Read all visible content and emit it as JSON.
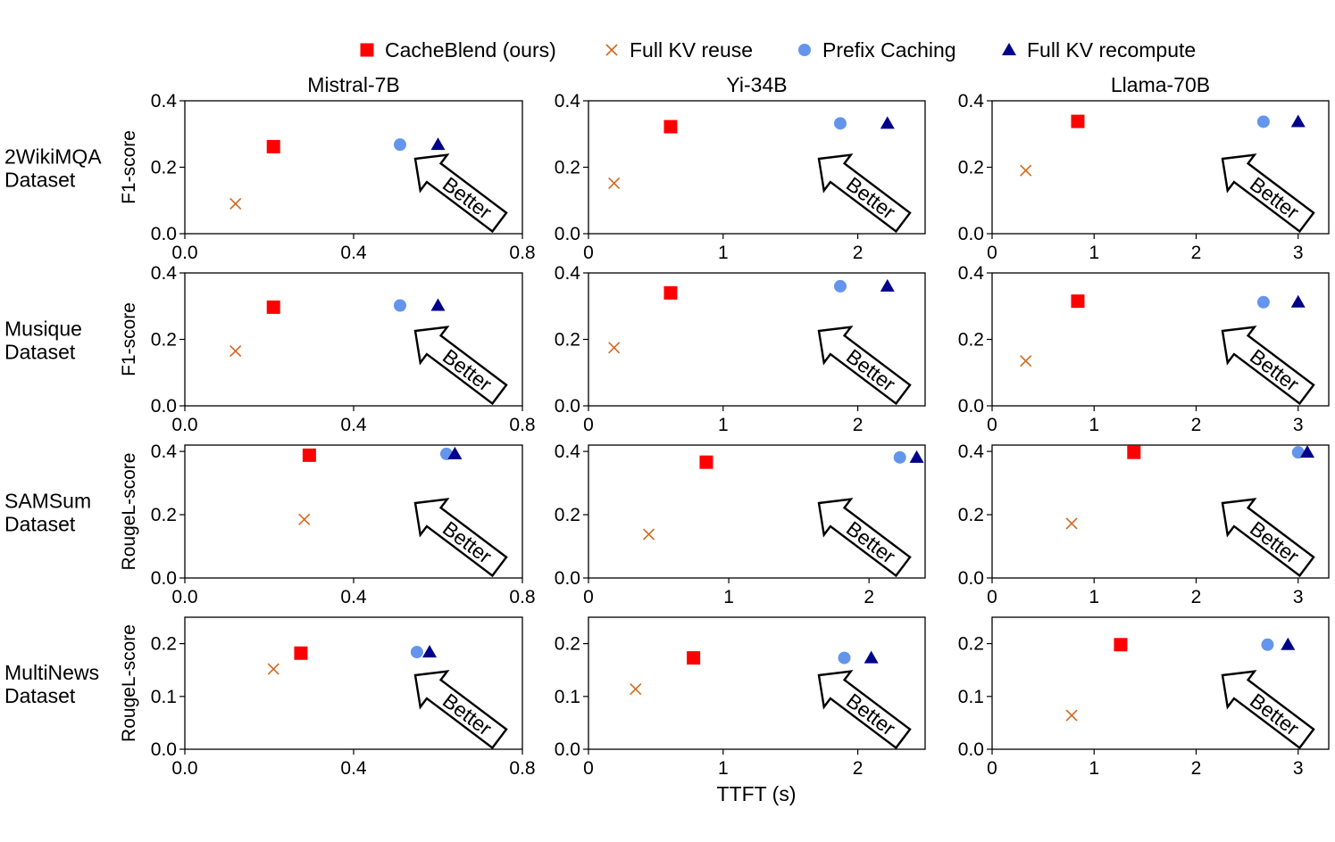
{
  "legend": [
    {
      "label": "CacheBlend (ours)",
      "marker": "square",
      "color": "#ff0000"
    },
    {
      "label": "Full KV reuse",
      "marker": "x",
      "color": "#d2691e"
    },
    {
      "label": "Prefix Caching",
      "marker": "circle",
      "color": "#6495ed"
    },
    {
      "label": "Full KV recompute",
      "marker": "triangle",
      "color": "#00008b"
    }
  ],
  "columns": [
    "Mistral-7B",
    "Yi-34B",
    "Llama-70B"
  ],
  "rows": [
    {
      "line1": "2WikiMQA",
      "line2": "Dataset",
      "ylabel": "F1-score"
    },
    {
      "line1": "Musique",
      "line2": "Dataset",
      "ylabel": "F1-score"
    },
    {
      "line1": "SAMSum",
      "line2": "Dataset",
      "ylabel": "RougeL-score"
    },
    {
      "line1": "MultiNews",
      "line2": "Dataset",
      "ylabel": "RougeL-score"
    }
  ],
  "xlabel": "TTFT (s)",
  "annotation": "Better",
  "chart_data": [
    {
      "type": "scatter",
      "row": 0,
      "col": 0,
      "xlim": [
        0,
        0.8
      ],
      "ylim": [
        0,
        0.4
      ],
      "xticks": [
        "0.0",
        "0.4",
        "0.8"
      ],
      "xtick_values": [
        0,
        0.4,
        0.8
      ],
      "yticks": [
        "0.0",
        "0.2",
        "0.4"
      ],
      "ytick_values": [
        0,
        0.2,
        0.4
      ],
      "points": [
        [
          0.21,
          0.262
        ],
        [
          0.12,
          0.09
        ],
        [
          0.51,
          0.268
        ],
        [
          0.6,
          0.268
        ]
      ]
    },
    {
      "type": "scatter",
      "row": 0,
      "col": 1,
      "xlim": [
        0,
        2.5
      ],
      "ylim": [
        0,
        0.4
      ],
      "xticks": [
        "0",
        "1",
        "2"
      ],
      "xtick_values": [
        0,
        1,
        2
      ],
      "yticks": [
        "0.0",
        "0.2",
        "0.4"
      ],
      "ytick_values": [
        0,
        0.2,
        0.4
      ],
      "points": [
        [
          0.61,
          0.322
        ],
        [
          0.19,
          0.152
        ],
        [
          1.87,
          0.332
        ],
        [
          2.22,
          0.332
        ]
      ]
    },
    {
      "type": "scatter",
      "row": 0,
      "col": 2,
      "xlim": [
        0,
        3.3
      ],
      "ylim": [
        0,
        0.4
      ],
      "xticks": [
        "0",
        "1",
        "2",
        "3"
      ],
      "xtick_values": [
        0,
        1,
        2,
        3
      ],
      "yticks": [
        "0.0",
        "0.2",
        "0.4"
      ],
      "ytick_values": [
        0,
        0.2,
        0.4
      ],
      "points": [
        [
          0.84,
          0.338
        ],
        [
          0.33,
          0.19
        ],
        [
          2.66,
          0.337
        ],
        [
          3.0,
          0.337
        ]
      ]
    },
    {
      "type": "scatter",
      "row": 1,
      "col": 0,
      "xlim": [
        0,
        0.8
      ],
      "ylim": [
        0,
        0.4
      ],
      "xticks": [
        "0.0",
        "0.4",
        "0.8"
      ],
      "xtick_values": [
        0,
        0.4,
        0.8
      ],
      "yticks": [
        "0.0",
        "0.2",
        "0.4"
      ],
      "ytick_values": [
        0,
        0.2,
        0.4
      ],
      "points": [
        [
          0.21,
          0.297
        ],
        [
          0.12,
          0.165
        ],
        [
          0.51,
          0.302
        ],
        [
          0.6,
          0.302
        ]
      ]
    },
    {
      "type": "scatter",
      "row": 1,
      "col": 1,
      "xlim": [
        0,
        2.5
      ],
      "ylim": [
        0,
        0.4
      ],
      "xticks": [
        "0",
        "1",
        "2"
      ],
      "xtick_values": [
        0,
        1,
        2
      ],
      "yticks": [
        "0.0",
        "0.2",
        "0.4"
      ],
      "ytick_values": [
        0,
        0.2,
        0.4
      ],
      "points": [
        [
          0.61,
          0.34
        ],
        [
          0.19,
          0.175
        ],
        [
          1.87,
          0.36
        ],
        [
          2.22,
          0.36
        ]
      ]
    },
    {
      "type": "scatter",
      "row": 1,
      "col": 2,
      "xlim": [
        0,
        3.3
      ],
      "ylim": [
        0,
        0.4
      ],
      "xticks": [
        "0",
        "1",
        "2",
        "3"
      ],
      "xtick_values": [
        0,
        1,
        2,
        3
      ],
      "yticks": [
        "0.0",
        "0.2",
        "0.4"
      ],
      "ytick_values": [
        0,
        0.2,
        0.4
      ],
      "points": [
        [
          0.84,
          0.315
        ],
        [
          0.33,
          0.135
        ],
        [
          2.66,
          0.312
        ],
        [
          3.0,
          0.312
        ]
      ]
    },
    {
      "type": "scatter",
      "row": 2,
      "col": 0,
      "xlim": [
        0,
        0.8
      ],
      "ylim": [
        0,
        0.42
      ],
      "xticks": [
        "0.0",
        "0.4",
        "0.8"
      ],
      "xtick_values": [
        0,
        0.4,
        0.8
      ],
      "yticks": [
        "0.0",
        "0.2",
        "0.4"
      ],
      "ytick_values": [
        0,
        0.2,
        0.4
      ],
      "points": [
        [
          0.295,
          0.388
        ],
        [
          0.283,
          0.185
        ],
        [
          0.62,
          0.392
        ],
        [
          0.64,
          0.392
        ]
      ]
    },
    {
      "type": "scatter",
      "row": 2,
      "col": 1,
      "xlim": [
        0,
        2.4
      ],
      "ylim": [
        0,
        0.42
      ],
      "xticks": [
        "0",
        "1",
        "2"
      ],
      "xtick_values": [
        0,
        1,
        2
      ],
      "yticks": [
        "0.0",
        "0.2",
        "0.4"
      ],
      "ytick_values": [
        0,
        0.2,
        0.4
      ],
      "points": [
        [
          0.84,
          0.366
        ],
        [
          0.43,
          0.138
        ],
        [
          2.22,
          0.381
        ],
        [
          2.34,
          0.381
        ]
      ]
    },
    {
      "type": "scatter",
      "row": 2,
      "col": 2,
      "xlim": [
        0,
        3.3
      ],
      "ylim": [
        0,
        0.42
      ],
      "xticks": [
        "0",
        "1",
        "2",
        "3"
      ],
      "xtick_values": [
        0,
        1,
        2,
        3
      ],
      "yticks": [
        "0.0",
        "0.2",
        "0.4"
      ],
      "ytick_values": [
        0,
        0.2,
        0.4
      ],
      "points": [
        [
          1.39,
          0.397
        ],
        [
          0.78,
          0.172
        ],
        [
          3.0,
          0.397
        ],
        [
          3.09,
          0.397
        ]
      ]
    },
    {
      "type": "scatter",
      "row": 3,
      "col": 0,
      "xlim": [
        0,
        0.8
      ],
      "ylim": [
        0,
        0.25
      ],
      "xticks": [
        "0.0",
        "0.4",
        "0.8"
      ],
      "xtick_values": [
        0,
        0.4,
        0.8
      ],
      "yticks": [
        "0.0",
        "0.1",
        "0.2"
      ],
      "ytick_values": [
        0,
        0.1,
        0.2
      ],
      "points": [
        [
          0.275,
          0.182
        ],
        [
          0.21,
          0.152
        ],
        [
          0.55,
          0.184
        ],
        [
          0.58,
          0.184
        ]
      ]
    },
    {
      "type": "scatter",
      "row": 3,
      "col": 1,
      "xlim": [
        0,
        2.5
      ],
      "ylim": [
        0,
        0.25
      ],
      "xticks": [
        "0",
        "1",
        "2"
      ],
      "xtick_values": [
        0,
        1,
        2
      ],
      "yticks": [
        "0.0",
        "0.1",
        "0.2"
      ],
      "ytick_values": [
        0,
        0.1,
        0.2
      ],
      "points": [
        [
          0.78,
          0.173
        ],
        [
          0.35,
          0.114
        ],
        [
          1.9,
          0.173
        ],
        [
          2.1,
          0.173
        ]
      ]
    },
    {
      "type": "scatter",
      "row": 3,
      "col": 2,
      "xlim": [
        0,
        3.3
      ],
      "ylim": [
        0,
        0.25
      ],
      "xticks": [
        "0",
        "1",
        "2",
        "3"
      ],
      "xtick_values": [
        0,
        1,
        2,
        3
      ],
      "yticks": [
        "0.0",
        "0.1",
        "0.2"
      ],
      "ytick_values": [
        0,
        0.1,
        0.2
      ],
      "points": [
        [
          1.26,
          0.198
        ],
        [
          0.78,
          0.064
        ],
        [
          2.7,
          0.198
        ],
        [
          2.9,
          0.198
        ]
      ]
    }
  ]
}
